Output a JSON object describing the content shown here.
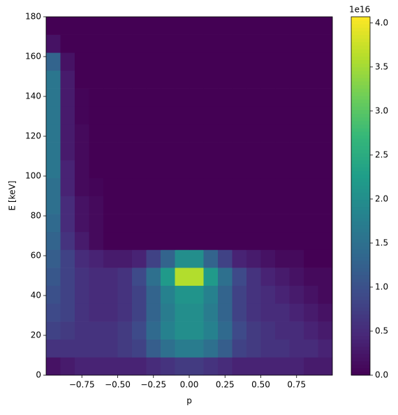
{
  "chart_data": {
    "type": "heatmap",
    "x_label": "p",
    "y_label": "E [keV]",
    "colorbar_offset": "1e16",
    "colormap": "viridis",
    "x_bins": [
      -1,
      -0.9,
      -0.8,
      -0.7,
      -0.6,
      -0.5,
      -0.4,
      -0.3,
      -0.2,
      -0.1,
      0,
      0.1,
      0.2,
      0.3,
      0.4,
      0.5,
      0.6,
      0.7,
      0.8,
      0.9,
      1
    ],
    "y_bins": [
      0,
      9,
      18,
      27,
      36,
      45,
      54,
      63,
      72,
      81,
      90,
      99,
      108,
      117,
      126,
      135,
      144,
      153,
      162,
      171,
      180
    ],
    "z": [
      [
        0.2,
        0.3,
        0.4,
        0.4,
        0.4,
        0.4,
        0.4,
        0.5,
        0.6,
        0.7,
        0.7,
        0.6,
        0.5,
        0.4,
        0.4,
        0.4,
        0.4,
        0.4,
        0.3,
        0.3
      ],
      [
        0.6,
        0.6,
        0.6,
        0.6,
        0.6,
        0.7,
        0.8,
        1.2,
        1.5,
        1.7,
        1.7,
        1.5,
        1.2,
        0.8,
        0.7,
        0.6,
        0.6,
        0.5,
        0.5,
        0.4
      ],
      [
        0.8,
        0.7,
        0.6,
        0.6,
        0.6,
        0.7,
        0.9,
        1.4,
        1.8,
        2.0,
        2.0,
        1.8,
        1.4,
        0.9,
        0.7,
        0.6,
        0.5,
        0.5,
        0.4,
        0.3
      ],
      [
        0.9,
        0.8,
        0.6,
        0.5,
        0.5,
        0.6,
        0.8,
        1.3,
        1.7,
        2.0,
        2.0,
        1.7,
        1.3,
        0.8,
        0.6,
        0.5,
        0.5,
        0.4,
        0.3,
        0.2
      ],
      [
        1.0,
        0.8,
        0.6,
        0.5,
        0.5,
        0.6,
        0.8,
        1.3,
        1.8,
        2.1,
        2.1,
        1.8,
        1.3,
        0.8,
        0.6,
        0.5,
        0.4,
        0.3,
        0.2,
        0.1
      ],
      [
        1.1,
        0.8,
        0.6,
        0.5,
        0.5,
        0.6,
        0.9,
        1.5,
        2.2,
        3.6,
        3.6,
        2.2,
        1.5,
        0.9,
        0.6,
        0.4,
        0.3,
        0.2,
        0.1,
        0.1
      ],
      [
        1.2,
        0.8,
        0.5,
        0.4,
        0.3,
        0.3,
        0.4,
        0.8,
        1.3,
        2.0,
        2.0,
        1.3,
        0.8,
        0.4,
        0.3,
        0.2,
        0.1,
        0.1,
        0,
        0
      ],
      [
        1.3,
        0.6,
        0.3,
        0.1,
        0,
        0,
        0,
        0,
        0,
        0,
        0,
        0,
        0,
        0,
        0,
        0,
        0,
        0,
        0,
        0
      ],
      [
        1.4,
        0.5,
        0.2,
        0.1,
        0,
        0,
        0,
        0,
        0,
        0,
        0,
        0,
        0,
        0,
        0,
        0,
        0,
        0,
        0,
        0
      ],
      [
        1.5,
        0.5,
        0.2,
        0.1,
        0,
        0,
        0,
        0,
        0,
        0,
        0,
        0,
        0,
        0,
        0,
        0,
        0,
        0,
        0,
        0
      ],
      [
        1.5,
        0.4,
        0.1,
        0.05,
        0,
        0,
        0,
        0,
        0,
        0,
        0,
        0,
        0,
        0,
        0,
        0,
        0,
        0,
        0,
        0
      ],
      [
        1.6,
        0.4,
        0.1,
        0,
        0,
        0,
        0,
        0,
        0,
        0,
        0,
        0,
        0,
        0,
        0,
        0,
        0,
        0,
        0,
        0
      ],
      [
        1.6,
        0.3,
        0.1,
        0,
        0,
        0,
        0,
        0,
        0,
        0,
        0,
        0,
        0,
        0,
        0,
        0,
        0,
        0,
        0,
        0
      ],
      [
        1.6,
        0.3,
        0.1,
        0,
        0,
        0,
        0,
        0,
        0,
        0,
        0,
        0,
        0,
        0,
        0,
        0,
        0,
        0,
        0,
        0
      ],
      [
        1.6,
        0.3,
        0.05,
        0,
        0,
        0,
        0,
        0,
        0,
        0,
        0,
        0,
        0,
        0,
        0,
        0,
        0,
        0,
        0,
        0
      ],
      [
        1.6,
        0.3,
        0.05,
        0,
        0,
        0,
        0,
        0,
        0,
        0,
        0,
        0,
        0,
        0,
        0,
        0,
        0,
        0,
        0,
        0
      ],
      [
        1.6,
        0.3,
        0,
        0,
        0,
        0,
        0,
        0,
        0,
        0,
        0,
        0,
        0,
        0,
        0,
        0,
        0,
        0,
        0,
        0
      ],
      [
        1.3,
        0.2,
        0,
        0,
        0,
        0,
        0,
        0,
        0,
        0,
        0,
        0,
        0,
        0,
        0,
        0,
        0,
        0,
        0,
        0
      ],
      [
        0.2,
        0,
        0,
        0,
        0,
        0,
        0,
        0,
        0,
        0,
        0,
        0,
        0,
        0,
        0,
        0,
        0,
        0,
        0,
        0
      ],
      [
        0,
        0,
        0,
        0,
        0,
        0,
        0,
        0,
        0,
        0,
        0,
        0,
        0,
        0,
        0,
        0,
        0,
        0,
        0,
        0
      ]
    ],
    "xlim": [
      -1,
      1
    ],
    "ylim": [
      0,
      180
    ],
    "clim": [
      0,
      4.07
    ],
    "xticks": [
      {
        "value": -0.75,
        "label": "−0.75"
      },
      {
        "value": -0.5,
        "label": "−0.50"
      },
      {
        "value": -0.25,
        "label": "−0.25"
      },
      {
        "value": 0,
        "label": "0.00"
      },
      {
        "value": 0.25,
        "label": "0.25"
      },
      {
        "value": 0.5,
        "label": "0.50"
      },
      {
        "value": 0.75,
        "label": "0.75"
      }
    ],
    "yticks": [
      0,
      20,
      40,
      60,
      80,
      100,
      120,
      140,
      160,
      180
    ],
    "cticks": [
      {
        "value": 0,
        "label": "0.0"
      },
      {
        "value": 0.5,
        "label": "0.5"
      },
      {
        "value": 1,
        "label": "1.0"
      },
      {
        "value": 1.5,
        "label": "1.5"
      },
      {
        "value": 2,
        "label": "2.0"
      },
      {
        "value": 2.5,
        "label": "2.5"
      },
      {
        "value": 3,
        "label": "3.0"
      },
      {
        "value": 3.5,
        "label": "3.5"
      },
      {
        "value": 4,
        "label": "4.0"
      }
    ]
  }
}
